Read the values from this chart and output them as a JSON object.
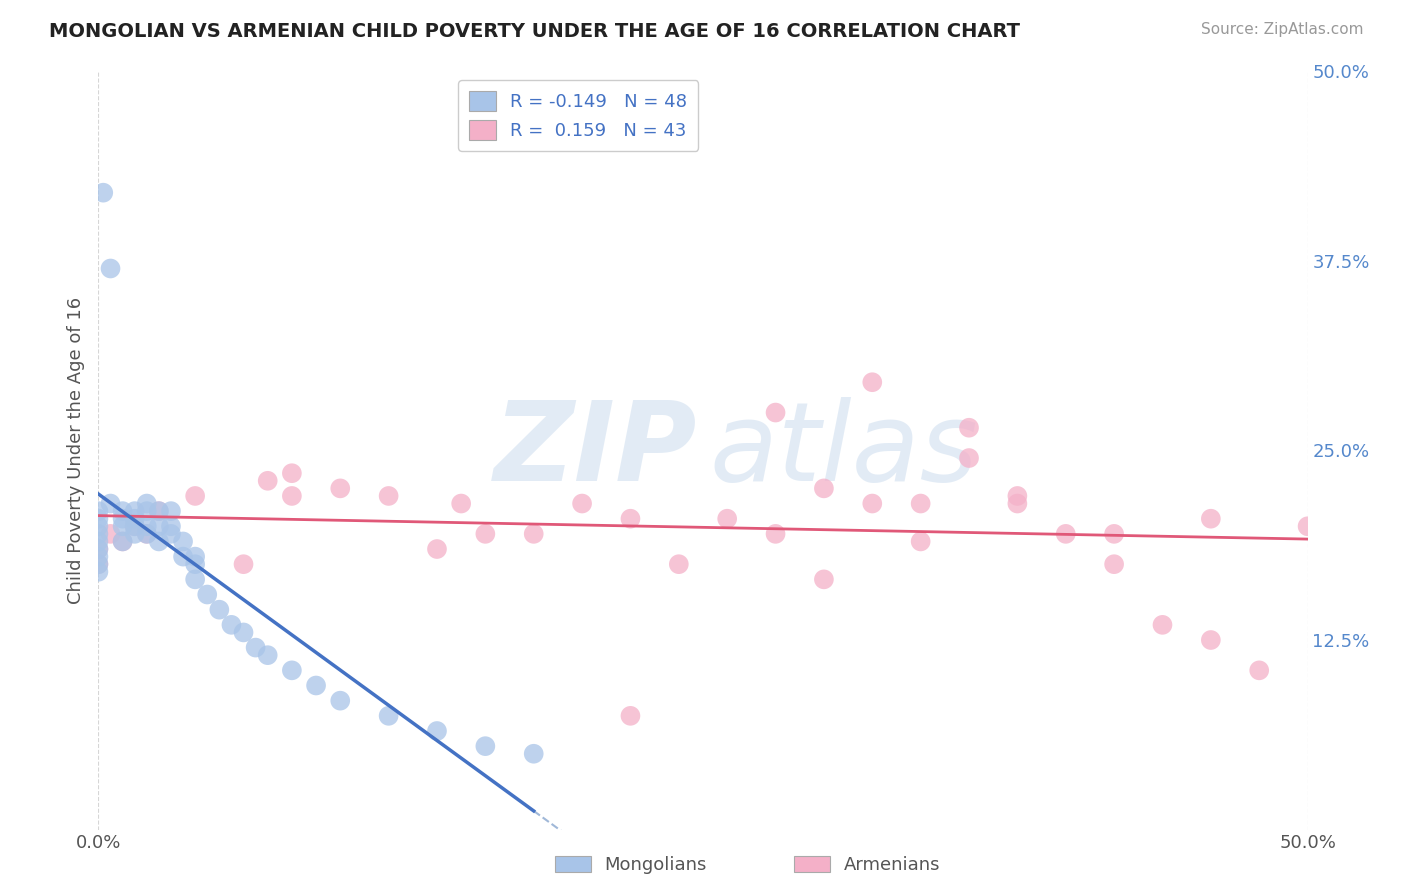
{
  "title": "MONGOLIAN VS ARMENIAN CHILD POVERTY UNDER THE AGE OF 16 CORRELATION CHART",
  "source": "Source: ZipAtlas.com",
  "ylabel": "Child Poverty Under the Age of 16",
  "xlim": [
    0.0,
    0.5
  ],
  "ylim": [
    0.0,
    0.5
  ],
  "mongolian_r": "-0.149",
  "mongolian_n": "48",
  "armenian_r": "0.159",
  "armenian_n": "43",
  "mongolian_color": "#a8c4e8",
  "armenian_color": "#f4b0c8",
  "mongolian_line_color": "#4472c4",
  "armenian_line_color": "#e05878",
  "background_color": "#ffffff",
  "grid_color": "#cccccc",
  "mongolian_x": [
    0.002,
    0.005,
    0.0,
    0.0,
    0.0,
    0.0,
    0.0,
    0.0,
    0.0,
    0.0,
    0.0,
    0.005,
    0.01,
    0.01,
    0.01,
    0.01,
    0.015,
    0.015,
    0.015,
    0.015,
    0.02,
    0.02,
    0.02,
    0.02,
    0.025,
    0.025,
    0.025,
    0.03,
    0.03,
    0.03,
    0.035,
    0.035,
    0.04,
    0.04,
    0.04,
    0.045,
    0.05,
    0.055,
    0.06,
    0.065,
    0.07,
    0.08,
    0.09,
    0.1,
    0.12,
    0.14,
    0.16,
    0.18
  ],
  "mongolian_y": [
    0.42,
    0.37,
    0.17,
    0.175,
    0.18,
    0.185,
    0.19,
    0.195,
    0.2,
    0.205,
    0.21,
    0.215,
    0.19,
    0.2,
    0.205,
    0.21,
    0.195,
    0.2,
    0.205,
    0.21,
    0.195,
    0.2,
    0.21,
    0.215,
    0.19,
    0.2,
    0.21,
    0.195,
    0.2,
    0.21,
    0.18,
    0.19,
    0.165,
    0.175,
    0.18,
    0.155,
    0.145,
    0.135,
    0.13,
    0.12,
    0.115,
    0.105,
    0.095,
    0.085,
    0.075,
    0.065,
    0.055,
    0.05
  ],
  "armenian_x": [
    0.0,
    0.0,
    0.005,
    0.01,
    0.015,
    0.02,
    0.025,
    0.04,
    0.06,
    0.07,
    0.08,
    0.1,
    0.12,
    0.14,
    0.15,
    0.16,
    0.18,
    0.2,
    0.22,
    0.24,
    0.26,
    0.28,
    0.3,
    0.32,
    0.34,
    0.36,
    0.38,
    0.38,
    0.4,
    0.42,
    0.44,
    0.46,
    0.48,
    0.32,
    0.36,
    0.42,
    0.46,
    0.28,
    0.3,
    0.34,
    0.22,
    0.08,
    0.5
  ],
  "armenian_y": [
    0.175,
    0.185,
    0.195,
    0.19,
    0.2,
    0.195,
    0.21,
    0.22,
    0.175,
    0.23,
    0.235,
    0.225,
    0.22,
    0.185,
    0.215,
    0.195,
    0.195,
    0.215,
    0.205,
    0.175,
    0.205,
    0.275,
    0.225,
    0.215,
    0.19,
    0.265,
    0.215,
    0.22,
    0.195,
    0.175,
    0.135,
    0.125,
    0.105,
    0.295,
    0.245,
    0.195,
    0.205,
    0.195,
    0.165,
    0.215,
    0.075,
    0.22,
    0.2
  ]
}
